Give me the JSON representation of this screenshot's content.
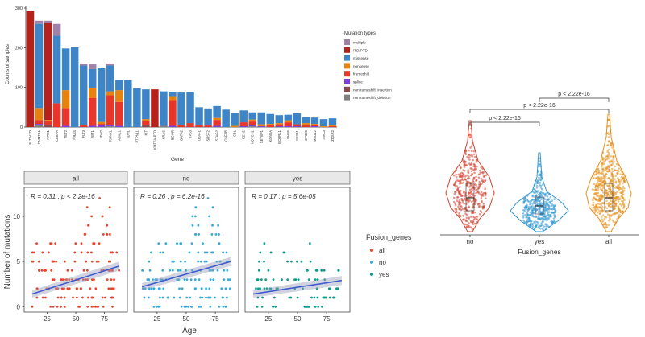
{
  "chart_data": [
    {
      "type": "bar",
      "stacked": true,
      "xlabel": "Gene",
      "ylabel": "Counts of samples",
      "ylim": [
        0,
        300
      ],
      "yticks": [
        0,
        100,
        200,
        300
      ],
      "legend_title": "Mutation types",
      "legend_position": "right",
      "categories": [
        "FLT3-ITD",
        "DNMT3A",
        "NPM1",
        "CEBPA",
        "TET2",
        "NRAS",
        "FLT3",
        "WT1",
        "IDH2",
        "RUNX1",
        "ASXL1",
        "IDH1",
        "PTPN11",
        "KIT",
        "KMT2A-PTD",
        "KRAS",
        "BCOR",
        "GATA2",
        "TP53",
        "U2AF1",
        "SRSF2",
        "STAG2",
        "CSF3R",
        "CBL",
        "EZH2",
        "NOTCH1",
        "SETBP1",
        "KDM6A",
        "BCORL1",
        "PHF6",
        "SF3B1",
        "EP300",
        "MED12",
        "SMC3",
        "ZRSR2"
      ],
      "series": [
        {
          "name": "multiple",
          "color": "#9e82a8",
          "values": [
            0,
            8,
            5,
            30,
            0,
            0,
            5,
            12,
            0,
            5,
            0,
            0,
            0,
            0,
            0,
            0,
            0,
            0,
            0,
            0,
            0,
            0,
            0,
            0,
            0,
            0,
            0,
            0,
            0,
            0,
            0,
            0,
            0,
            0,
            0
          ]
        },
        {
          "name": "ITD/PTD",
          "color": "#b5221c",
          "values": [
            292,
            0,
            245,
            0,
            0,
            0,
            0,
            0,
            0,
            0,
            0,
            0,
            0,
            0,
            95,
            0,
            0,
            0,
            0,
            0,
            0,
            0,
            0,
            0,
            0,
            0,
            0,
            0,
            0,
            0,
            0,
            0,
            0,
            0,
            0
          ]
        },
        {
          "name": "missense",
          "color": "#3d85c6",
          "values": [
            0,
            212,
            0,
            170,
            105,
            201,
            150,
            48,
            135,
            65,
            25,
            118,
            98,
            75,
            0,
            87,
            10,
            82,
            78,
            45,
            42,
            30,
            44,
            32,
            30,
            18,
            30,
            25,
            20,
            14,
            28,
            15,
            16,
            18,
            18
          ]
        },
        {
          "name": "nonsense",
          "color": "#e8820e",
          "values": [
            0,
            30,
            3,
            0,
            45,
            0,
            0,
            25,
            5,
            10,
            30,
            0,
            0,
            5,
            0,
            0,
            10,
            0,
            0,
            0,
            0,
            5,
            0,
            3,
            0,
            5,
            5,
            3,
            3,
            5,
            0,
            5,
            3,
            2,
            2
          ]
        },
        {
          "name": "frameshift",
          "color": "#e8362a",
          "values": [
            0,
            10,
            10,
            60,
            45,
            0,
            5,
            70,
            3,
            75,
            60,
            0,
            0,
            10,
            0,
            0,
            65,
            5,
            10,
            5,
            5,
            15,
            0,
            0,
            10,
            10,
            0,
            5,
            5,
            10,
            5,
            5,
            3,
            0,
            2
          ]
        },
        {
          "name": "splice",
          "color": "#7d3fe0",
          "values": [
            0,
            3,
            0,
            0,
            3,
            0,
            0,
            3,
            5,
            3,
            3,
            0,
            0,
            0,
            0,
            0,
            3,
            0,
            0,
            0,
            0,
            3,
            0,
            0,
            2,
            2,
            2,
            0,
            2,
            2,
            2,
            0,
            2,
            0,
            0
          ]
        },
        {
          "name": "nonframeshift_insertion",
          "color": "#8c4a4a",
          "values": [
            0,
            0,
            5,
            0,
            0,
            0,
            0,
            0,
            0,
            0,
            0,
            0,
            0,
            5,
            0,
            0,
            0,
            0,
            0,
            0,
            0,
            0,
            0,
            0,
            0,
            0,
            0,
            0,
            0,
            0,
            0,
            0,
            0,
            0,
            0
          ]
        },
        {
          "name": "nonframeshift_deletion",
          "color": "#808080",
          "values": [
            0,
            5,
            0,
            0,
            0,
            0,
            0,
            0,
            0,
            2,
            0,
            0,
            0,
            0,
            0,
            3,
            0,
            0,
            0,
            0,
            0,
            0,
            0,
            0,
            0,
            2,
            0,
            0,
            0,
            0,
            0,
            0,
            0,
            0,
            0
          ]
        }
      ]
    },
    {
      "type": "scatter",
      "facets": [
        "all",
        "no",
        "yes"
      ],
      "xlabel": "Age",
      "ylabel": "Number of mutations",
      "xlim": [
        5,
        95
      ],
      "ylim": [
        -0.6,
        13.2
      ],
      "xticks": [
        25,
        50,
        75
      ],
      "yticks": [
        0,
        5,
        10
      ],
      "legend_title": "Fusion_genes",
      "legend_position": "right",
      "legend": [
        {
          "name": "all",
          "color": "#e7432d"
        },
        {
          "name": "no",
          "color": "#36a9d6"
        },
        {
          "name": "yes",
          "color": "#0a9a8a"
        }
      ],
      "annotations": [
        {
          "facet": "all",
          "R": "R = 0.31 , p < 2.2e-16",
          "fit": [
            [
              12,
              1.4
            ],
            [
              88,
              4.5
            ]
          ]
        },
        {
          "facet": "no",
          "R": "R = 0.26 , p = 6.2e-16",
          "fit": [
            [
              12,
              2.2
            ],
            [
              88,
              5.0
            ]
          ]
        },
        {
          "facet": "yes",
          "R": "R = 0.17 , p = 5.6e-05",
          "fit": [
            [
              12,
              1.4
            ],
            [
              88,
              2.9
            ]
          ]
        }
      ]
    },
    {
      "type": "violin",
      "xlabel": "Fusion_genes",
      "categories": [
        "no",
        "yes",
        "all"
      ],
      "colors": [
        "#d2412f",
        "#2f95d1",
        "#e6901c"
      ],
      "comparisons": [
        {
          "groups": [
            "no",
            "yes"
          ],
          "label": "p < 2.22e-16"
        },
        {
          "groups": [
            "no",
            "all"
          ],
          "label": "p < 2.22e-16"
        },
        {
          "groups": [
            "yes",
            "all"
          ],
          "label": "p < 2.22e-16"
        }
      ]
    }
  ]
}
